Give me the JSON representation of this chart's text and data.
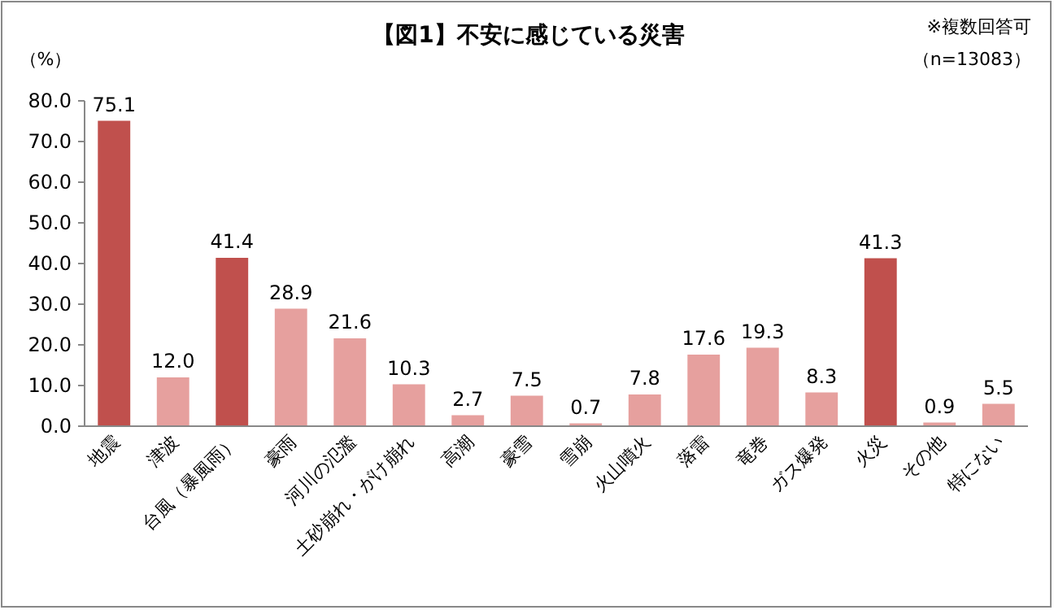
{
  "chart_data": {
    "type": "bar",
    "title": "【図1】不安に感じている災害",
    "ylabel": "（%）",
    "annotations": [
      "※複数回答可",
      "（n=13083）"
    ],
    "categories": [
      "地震",
      "津波",
      "台風（暴風雨）",
      "豪雨",
      "河川の氾濫",
      "土砂崩れ・がけ崩れ",
      "高潮",
      "豪雪",
      "雪崩",
      "火山噴火",
      "落雷",
      "竜巻",
      "ガス爆発",
      "火災",
      "その他",
      "特にない"
    ],
    "values": [
      75.1,
      12.0,
      41.4,
      28.9,
      21.6,
      10.3,
      2.7,
      7.5,
      0.7,
      7.8,
      17.6,
      19.3,
      8.3,
      41.3,
      0.9,
      5.5
    ],
    "value_labels": [
      "75.1",
      "12.0",
      "41.4",
      "28.9",
      "21.6",
      "10.3",
      "2.7",
      "7.5",
      "0.7",
      "7.8",
      "17.6",
      "19.3",
      "8.3",
      "41.3",
      "0.9",
      "5.5"
    ],
    "colors": [
      "#c0504d",
      "#e6a09e",
      "#c0504d",
      "#e6a09e",
      "#e6a09e",
      "#e6a09e",
      "#e6a09e",
      "#e6a09e",
      "#e6a09e",
      "#e6a09e",
      "#e6a09e",
      "#e6a09e",
      "#e6a09e",
      "#c0504d",
      "#e6a09e",
      "#e6a09e"
    ],
    "ylim": [
      0,
      80
    ],
    "yticks": [
      {
        "value": 0,
        "label": "0.0"
      },
      {
        "value": 10,
        "label": "10.0"
      },
      {
        "value": 20,
        "label": "20.0"
      },
      {
        "value": 30,
        "label": "30.0"
      },
      {
        "value": 40,
        "label": "40.0"
      },
      {
        "value": 50,
        "label": "50.0"
      },
      {
        "value": 60,
        "label": "60.0"
      },
      {
        "value": 70,
        "label": "70.0"
      },
      {
        "value": 80,
        "label": "80.0"
      }
    ]
  }
}
